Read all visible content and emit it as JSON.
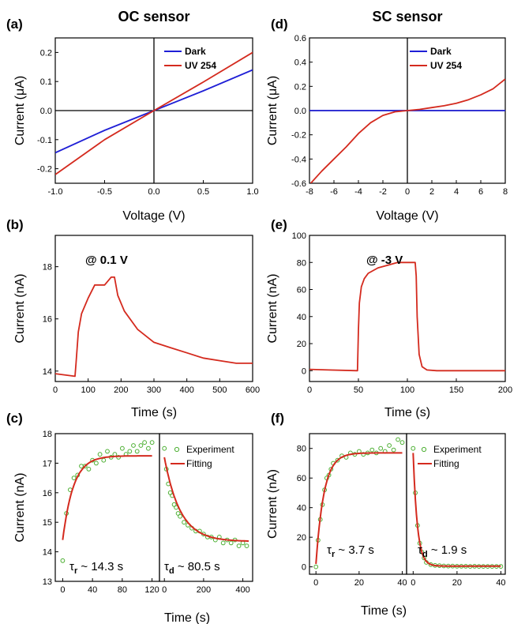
{
  "headers": {
    "left": "OC sensor",
    "right": "SC sensor"
  },
  "colors": {
    "dark": "#1f1fd6",
    "uv": "#d42a1e",
    "experiment": "#4caf32",
    "fitting": "#d42a1e",
    "axis": "#000000"
  },
  "chart_data": [
    {
      "id": "a",
      "panel_label": "(a)",
      "type": "line",
      "xlabel": "Voltage (V)",
      "ylabel": "Current (μA)",
      "xlim": [
        -1.0,
        1.0
      ],
      "ylim": [
        -0.25,
        0.25
      ],
      "xticks": [
        -1.0,
        -0.5,
        0.0,
        0.5,
        1.0
      ],
      "xtick_labels": [
        "-1.0",
        "-0.5",
        "0.0",
        "0.5",
        "1.0"
      ],
      "yticks": [
        -0.2,
        -0.1,
        0.0,
        0.1,
        0.2
      ],
      "ytick_labels": [
        "-0.2",
        "-0.1",
        "0.0",
        "0.1",
        "0.2"
      ],
      "legend": "top-right",
      "series": [
        {
          "name": "Dark",
          "color_key": "dark",
          "x": [
            -1.0,
            -0.5,
            0.0,
            0.5,
            1.0
          ],
          "y": [
            -0.145,
            -0.068,
            0.0,
            0.068,
            0.14
          ]
        },
        {
          "name": "UV 254",
          "color_key": "uv",
          "x": [
            -1.0,
            -0.5,
            0.0,
            0.5,
            1.0
          ],
          "y": [
            -0.22,
            -0.1,
            0.0,
            0.098,
            0.2
          ]
        }
      ]
    },
    {
      "id": "d",
      "panel_label": "(d)",
      "type": "line",
      "xlabel": "Voltage (V)",
      "ylabel": "Current (μA)",
      "xlim": [
        -8,
        8
      ],
      "ylim": [
        -0.6,
        0.6
      ],
      "xticks": [
        -8,
        -6,
        -4,
        -2,
        0,
        2,
        4,
        6,
        8
      ],
      "xtick_labels": [
        "-8",
        "-6",
        "-4",
        "-2",
        "0",
        "2",
        "4",
        "6",
        "8"
      ],
      "yticks": [
        -0.6,
        -0.4,
        -0.2,
        0.0,
        0.2,
        0.4,
        0.6
      ],
      "ytick_labels": [
        "-0.6",
        "-0.4",
        "-0.2",
        "0.0",
        "0.2",
        "0.4",
        "0.6"
      ],
      "legend": "top-right",
      "series": [
        {
          "name": "Dark",
          "color_key": "dark",
          "x": [
            -8,
            8
          ],
          "y": [
            0.0,
            0.0
          ]
        },
        {
          "name": "UV 254",
          "color_key": "uv",
          "x": [
            -7.9,
            -7,
            -6,
            -5,
            -4,
            -3,
            -2,
            -1,
            0,
            1,
            2,
            3,
            4,
            5,
            6,
            7,
            8
          ],
          "y": [
            -0.6,
            -0.5,
            -0.4,
            -0.3,
            -0.19,
            -0.1,
            -0.04,
            -0.01,
            0.0,
            0.01,
            0.025,
            0.04,
            0.06,
            0.09,
            0.13,
            0.18,
            0.26
          ]
        }
      ]
    },
    {
      "id": "b",
      "panel_label": "(b)",
      "type": "line",
      "xlabel": "Time (s)",
      "ylabel": "Current (nA)",
      "xlim": [
        0,
        600
      ],
      "ylim": [
        13.6,
        19.2
      ],
      "xticks": [
        0,
        100,
        200,
        300,
        400,
        500,
        600
      ],
      "xtick_labels": [
        "0",
        "100",
        "200",
        "300",
        "400",
        "500",
        "600"
      ],
      "yticks": [
        14,
        16,
        18
      ],
      "ytick_labels": [
        "14",
        "16",
        "18"
      ],
      "annotation": "@ 0.1 V",
      "series": [
        {
          "name": "",
          "color_key": "uv",
          "x": [
            0,
            60,
            63,
            70,
            80,
            100,
            120,
            150,
            170,
            180,
            190,
            210,
            250,
            300,
            350,
            400,
            450,
            500,
            550,
            600
          ],
          "y": [
            13.9,
            13.8,
            14.3,
            15.5,
            16.2,
            16.8,
            17.3,
            17.3,
            17.6,
            17.6,
            16.9,
            16.3,
            15.6,
            15.1,
            14.9,
            14.7,
            14.5,
            14.4,
            14.3,
            14.3
          ]
        }
      ]
    },
    {
      "id": "e",
      "panel_label": "(e)",
      "type": "line",
      "xlabel": "Time (s)",
      "ylabel": "Current (nA)",
      "xlim": [
        0,
        200
      ],
      "ylim": [
        -8,
        100
      ],
      "xticks": [
        0,
        50,
        100,
        150,
        200
      ],
      "xtick_labels": [
        "0",
        "50",
        "100",
        "150",
        "200"
      ],
      "yticks": [
        0,
        20,
        40,
        60,
        80,
        100
      ],
      "ytick_labels": [
        "0",
        "20",
        "40",
        "60",
        "80",
        "100"
      ],
      "annotation": "@ -3 V",
      "series": [
        {
          "name": "",
          "color_key": "uv",
          "x": [
            0,
            20,
            49,
            50,
            51,
            53,
            56,
            60,
            70,
            80,
            90,
            100,
            108,
            109,
            110,
            112,
            115,
            120,
            130,
            200
          ],
          "y": [
            1,
            0.5,
            0,
            30,
            50,
            62,
            68,
            72,
            76,
            78,
            80,
            80,
            80,
            70,
            40,
            12,
            3,
            0.5,
            0,
            0
          ]
        }
      ]
    },
    {
      "id": "c1",
      "panel_label": "(c)",
      "type": "scatter",
      "xlabel": "",
      "ylabel": "Current (nA)",
      "xlim": [
        -10,
        130
      ],
      "ylim": [
        13,
        18
      ],
      "xticks": [
        0,
        40,
        80,
        120
      ],
      "xtick_labels": [
        "0",
        "40",
        "80",
        "120"
      ],
      "yticks": [
        13,
        14,
        15,
        16,
        17,
        18
      ],
      "ytick_labels": [
        "13",
        "14",
        "15",
        "16",
        "17",
        "18"
      ],
      "tau_symbol": "τ",
      "tau_sub": "r",
      "tau_text": " ~ 14.3 s",
      "fit": {
        "kind": "rise",
        "x0": 0,
        "x1": 120,
        "y_start": 14.4,
        "y_end": 17.25,
        "tau": 14.3
      },
      "series": [
        {
          "name": "Experiment",
          "color_key": "experiment",
          "x": [
            0,
            5,
            10,
            15,
            20,
            25,
            30,
            35,
            40,
            45,
            50,
            55,
            60,
            65,
            70,
            75,
            80,
            85,
            90,
            95,
            100,
            105,
            110,
            115,
            120
          ],
          "y": [
            13.7,
            15.3,
            16.1,
            16.5,
            16.6,
            16.9,
            16.9,
            16.8,
            17.1,
            17.0,
            17.3,
            17.1,
            17.4,
            17.2,
            17.3,
            17.2,
            17.5,
            17.3,
            17.4,
            17.6,
            17.4,
            17.6,
            17.7,
            17.5,
            17.7
          ]
        },
        {
          "name": "Fitting",
          "color_key": "fitting"
        }
      ]
    },
    {
      "id": "c2",
      "panel_label": "",
      "type": "scatter",
      "xlabel": "",
      "ylabel": "",
      "xlim": [
        -25,
        450
      ],
      "ylim": [
        13,
        18
      ],
      "xticks": [
        0,
        200,
        400
      ],
      "xtick_labels": [
        "0",
        "200",
        "400"
      ],
      "yticks": [],
      "ytick_labels": [],
      "legend": "top-right",
      "tau_symbol": "τ",
      "tau_sub": "d",
      "tau_text": " ~ 80.5 s",
      "fit": {
        "kind": "decay",
        "x0": 0,
        "x1": 430,
        "y_start": 17.2,
        "y_end": 14.35,
        "tau": 80.5
      },
      "series": [
        {
          "name": "Experiment",
          "color_key": "experiment",
          "x": [
            0,
            10,
            20,
            30,
            40,
            50,
            60,
            70,
            80,
            100,
            120,
            140,
            160,
            180,
            200,
            220,
            240,
            260,
            280,
            300,
            320,
            340,
            360,
            380,
            400,
            420
          ],
          "y": [
            17.5,
            16.8,
            16.3,
            16.0,
            15.9,
            15.6,
            15.5,
            15.3,
            15.2,
            15.0,
            14.9,
            14.8,
            14.7,
            14.7,
            14.6,
            14.5,
            14.5,
            14.4,
            14.5,
            14.3,
            14.4,
            14.3,
            14.4,
            14.2,
            14.3,
            14.2
          ]
        },
        {
          "name": "Fitting",
          "color_key": "fitting"
        }
      ]
    },
    {
      "id": "f1",
      "panel_label": "(f)",
      "type": "scatter",
      "xlabel": "",
      "ylabel": "Current (nA)",
      "xlim": [
        -3,
        42
      ],
      "ylim": [
        -5,
        90
      ],
      "xticks": [
        0,
        20,
        40
      ],
      "xtick_labels": [
        "0",
        "20",
        "40"
      ],
      "yticks": [
        0,
        20,
        40,
        60,
        80
      ],
      "ytick_labels": [
        "0",
        "20",
        "40",
        "60",
        "80"
      ],
      "tau_symbol": "τ",
      "tau_sub": "r",
      "tau_text": " ~ 3.7 s",
      "fit": {
        "kind": "rise",
        "x0": 0,
        "x1": 40,
        "y_start": 2,
        "y_end": 77,
        "tau": 3.7
      },
      "series": [
        {
          "name": "Experiment",
          "color_key": "experiment",
          "x": [
            0,
            1,
            2,
            3,
            4,
            5,
            6,
            7,
            8,
            10,
            12,
            14,
            16,
            18,
            20,
            22,
            24,
            26,
            28,
            30,
            32,
            34,
            36,
            38,
            40
          ],
          "y": [
            0,
            18,
            32,
            42,
            52,
            60,
            62,
            66,
            70,
            72,
            75,
            74,
            77,
            76,
            78,
            76,
            77,
            79,
            77,
            80,
            78,
            82,
            79,
            86,
            84
          ]
        },
        {
          "name": "Fitting",
          "color_key": "fitting"
        }
      ]
    },
    {
      "id": "f2",
      "panel_label": "",
      "type": "scatter",
      "xlabel": "",
      "ylabel": "",
      "xlim": [
        -3,
        42
      ],
      "ylim": [
        -5,
        90
      ],
      "xticks": [
        0,
        20,
        40
      ],
      "xtick_labels": [
        "0",
        "20",
        "40"
      ],
      "yticks": [],
      "ytick_labels": [],
      "legend": "top-right",
      "tau_symbol": "τ",
      "tau_sub": "d",
      "tau_text": " ~ 1.9 s",
      "fit": {
        "kind": "decay",
        "x0": 0,
        "x1": 40,
        "y_start": 77,
        "y_end": 0.5,
        "tau": 1.9
      },
      "series": [
        {
          "name": "Experiment",
          "color_key": "experiment",
          "x": [
            0,
            1,
            2,
            3,
            4,
            5,
            6,
            8,
            10,
            12,
            14,
            16,
            18,
            20,
            22,
            24,
            26,
            28,
            30,
            32,
            34,
            36,
            38,
            40
          ],
          "y": [
            80,
            50,
            28,
            16,
            10,
            6,
            3,
            1.5,
            1,
            0.8,
            0.6,
            0.5,
            0.5,
            0.4,
            0.4,
            0.4,
            0.3,
            0.4,
            0.3,
            0.3,
            0.3,
            0.3,
            0.3,
            0.3
          ]
        },
        {
          "name": "Fitting",
          "color_key": "fitting"
        }
      ]
    }
  ],
  "shared_labels": {
    "c_xlabel": "Time (s)",
    "f_xlabel": "Time (s)"
  }
}
